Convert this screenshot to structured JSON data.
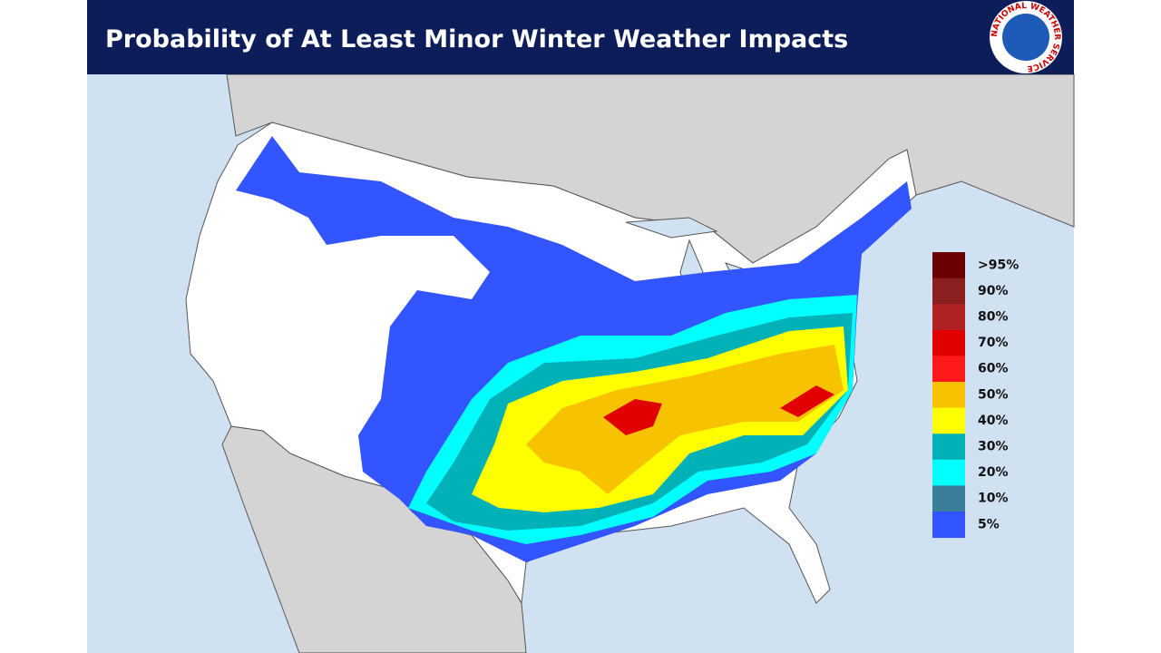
{
  "header": {
    "title": "Probability of At Least Minor Winter Weather Impacts",
    "logo_text": "NATIONAL WEATHER SERVICE"
  },
  "legend": {
    "items": [
      {
        "label": ">95%",
        "color": "#6b0000"
      },
      {
        "label": "90%",
        "color": "#8b2020"
      },
      {
        "label": "80%",
        "color": "#b02222"
      },
      {
        "label": "70%",
        "color": "#e00000"
      },
      {
        "label": "60%",
        "color": "#ff1a1a"
      },
      {
        "label": "50%",
        "color": "#f7c200"
      },
      {
        "label": "40%",
        "color": "#ffff00"
      },
      {
        "label": "30%",
        "color": "#00b2b8"
      },
      {
        "label": "20%",
        "color": "#00ffff"
      },
      {
        "label": "10%",
        "color": "#3a7f99"
      },
      {
        "label": "5%",
        "color": "#3355ff"
      }
    ]
  }
}
